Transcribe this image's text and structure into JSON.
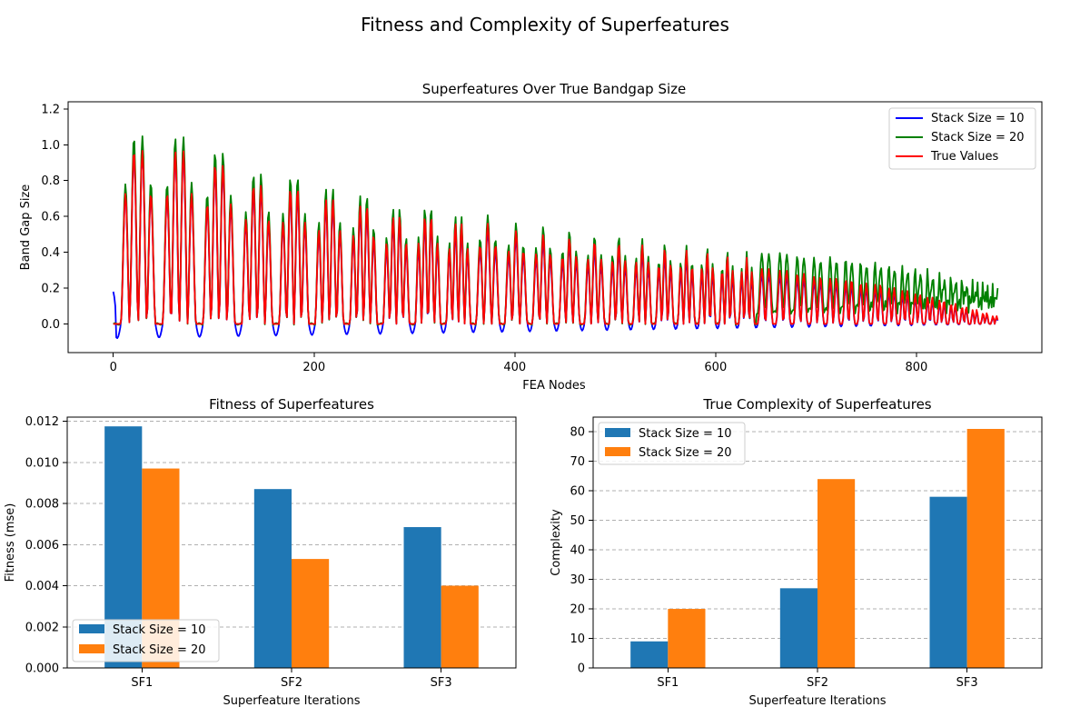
{
  "figure": {
    "title": "Fitness and Complexity of Superfeatures"
  },
  "chart_data": [
    {
      "type": "line",
      "title": "Superfeatures Over True Bandgap Size",
      "xlabel": "FEA Nodes",
      "ylabel": "Band Gap Size",
      "xlim": [
        -45,
        925
      ],
      "ylim": [
        -0.16,
        1.24
      ],
      "xticks": [
        "0",
        "200",
        "400",
        "600",
        "800"
      ],
      "yticks": [
        "0.0",
        "0.2",
        "0.4",
        "0.6",
        "0.8",
        "1.0",
        "1.2"
      ],
      "legend": "top-right",
      "grid": false,
      "signal": {
        "n_points": 882,
        "cycles": 40,
        "first_cycle_length": 48,
        "last_cycle_length": 11,
        "peak_heights_true": [
          1.0,
          1.0,
          0.92,
          0.8,
          0.78,
          0.72,
          0.68,
          0.62,
          0.62,
          0.58,
          0.56,
          0.52,
          0.5,
          0.48,
          0.46,
          0.45,
          0.44,
          0.42,
          0.41,
          0.4,
          0.38,
          0.37,
          0.35,
          0.34,
          0.32,
          0.3,
          0.29,
          0.28,
          0.26,
          0.25,
          0.23,
          0.21,
          0.19,
          0.17,
          0.15,
          0.13,
          0.11,
          0.09,
          0.07,
          0.05
        ]
      },
      "series": [
        {
          "name": "Stack Size = 10",
          "color": "#0000ff"
        },
        {
          "name": "Stack Size = 20",
          "color": "#008000"
        },
        {
          "name": "True Values",
          "color": "#ff0000"
        }
      ]
    },
    {
      "type": "bar",
      "title": "Fitness of Superfeatures",
      "xlabel": "Superfeature Iterations",
      "ylabel": "Fitness (mse)",
      "categories": [
        "SF1",
        "SF2",
        "SF3"
      ],
      "ylim": [
        0,
        0.0122
      ],
      "yticks": [
        "0.000",
        "0.002",
        "0.004",
        "0.006",
        "0.008",
        "0.010",
        "0.012"
      ],
      "ytick_values": [
        0,
        0.002,
        0.004,
        0.006,
        0.008,
        0.01,
        0.012
      ],
      "grid": true,
      "legend": "bottom-left",
      "series": [
        {
          "name": "Stack Size = 10",
          "color": "#1f77b4",
          "values": [
            0.01175,
            0.0087,
            0.00685
          ]
        },
        {
          "name": "Stack Size = 20",
          "color": "#ff7f0e",
          "values": [
            0.0097,
            0.0053,
            0.004
          ]
        }
      ]
    },
    {
      "type": "bar",
      "title": "True Complexity of Superfeatures",
      "xlabel": "Superfeature Iterations",
      "ylabel": "Complexity",
      "categories": [
        "SF1",
        "SF2",
        "SF3"
      ],
      "ylim": [
        0,
        85
      ],
      "yticks": [
        "0",
        "10",
        "20",
        "30",
        "40",
        "50",
        "60",
        "70",
        "80"
      ],
      "ytick_values": [
        0,
        10,
        20,
        30,
        40,
        50,
        60,
        70,
        80
      ],
      "grid": true,
      "legend": "top-left",
      "series": [
        {
          "name": "Stack Size = 10",
          "color": "#1f77b4",
          "values": [
            9,
            27,
            58
          ]
        },
        {
          "name": "Stack Size = 20",
          "color": "#ff7f0e",
          "values": [
            20,
            64,
            81
          ]
        }
      ]
    }
  ]
}
